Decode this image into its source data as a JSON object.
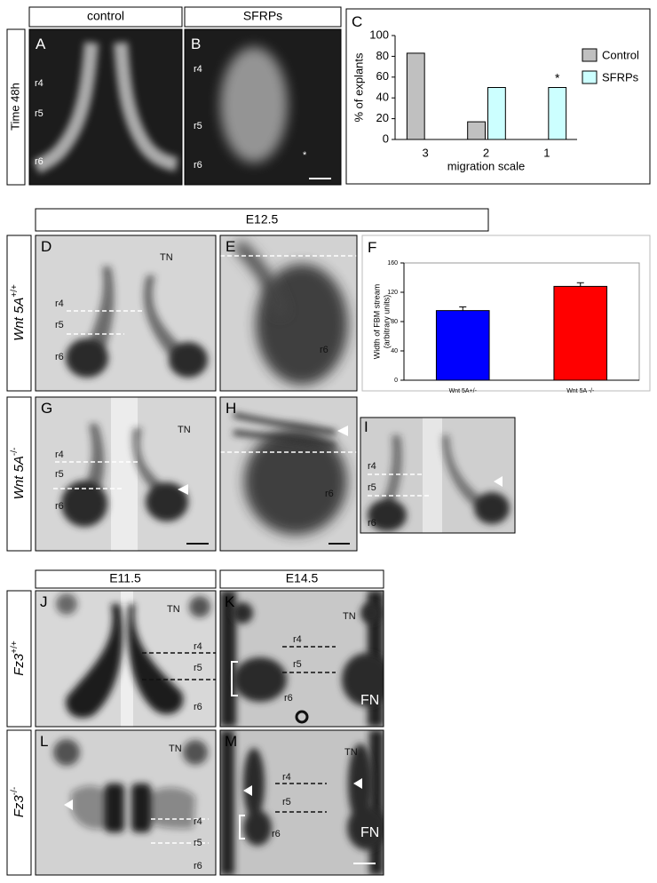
{
  "figure": {
    "column_headers": [
      "control",
      "SFRPs",
      "E12.5",
      "E11.5",
      "E14.5"
    ],
    "row_labels": [
      "Time 48h",
      {
        "gene": "Wnt 5A",
        "genotype": "+/+"
      },
      {
        "gene": "Wnt 5A",
        "genotype": "-/-"
      },
      {
        "gene": "Fz3",
        "genotype": "+/+"
      },
      {
        "gene": "Fz3",
        "genotype": "-/-"
      }
    ],
    "panels": [
      {
        "letter": "A",
        "labels": [
          "r4",
          "r5",
          "r6"
        ]
      },
      {
        "letter": "B",
        "labels": [
          "r4",
          "r5",
          "r6",
          "*"
        ]
      },
      {
        "letter": "D",
        "labels": [
          "TN",
          "r4",
          "r5",
          "r6"
        ]
      },
      {
        "letter": "E",
        "labels": [
          "r6"
        ]
      },
      {
        "letter": "G",
        "labels": [
          "TN",
          "r4",
          "r5",
          "r6"
        ]
      },
      {
        "letter": "H",
        "labels": [
          "r6"
        ]
      },
      {
        "letter": "I",
        "labels": [
          "r4",
          "r5",
          "r6"
        ]
      },
      {
        "letter": "J",
        "labels": [
          "TN",
          "r4",
          "r5",
          "r6"
        ]
      },
      {
        "letter": "K",
        "labels": [
          "TN",
          "r4",
          "r5",
          "r6",
          "FN"
        ]
      },
      {
        "letter": "L",
        "labels": [
          "TN",
          "r4",
          "r5",
          "r6"
        ]
      },
      {
        "letter": "M",
        "labels": [
          "TN",
          "r4",
          "r5",
          "r6",
          "FN"
        ]
      }
    ]
  },
  "chart_data": [
    {
      "type": "bar",
      "panel": "C",
      "y_label": "% of explants",
      "x_label": "migration scale",
      "categories": [
        "3",
        "2",
        "1"
      ],
      "series": [
        {
          "name": "Control",
          "color": "#c0c0c0",
          "values": [
            83,
            17,
            0
          ]
        },
        {
          "name": "SFRPs",
          "color": "#ccffff",
          "values": [
            0,
            50,
            50
          ]
        }
      ],
      "ylim": [
        0,
        100
      ],
      "yticks": [
        0,
        20,
        40,
        60,
        80,
        100
      ],
      "annotations": [
        "*"
      ],
      "legend": "right"
    },
    {
      "type": "bar",
      "panel": "F",
      "y_label": [
        "Width of FBM stream",
        "(arbitrary units)"
      ],
      "categories": [
        "Wnt 5A+/-",
        "Wnt 5A -/-"
      ],
      "values": [
        95,
        128
      ],
      "errors": [
        5,
        5
      ],
      "colors": [
        "#0000ff",
        "#ff0000"
      ],
      "ylim": [
        0,
        160
      ],
      "yticks": [
        0,
        40,
        80,
        120,
        160
      ]
    }
  ]
}
